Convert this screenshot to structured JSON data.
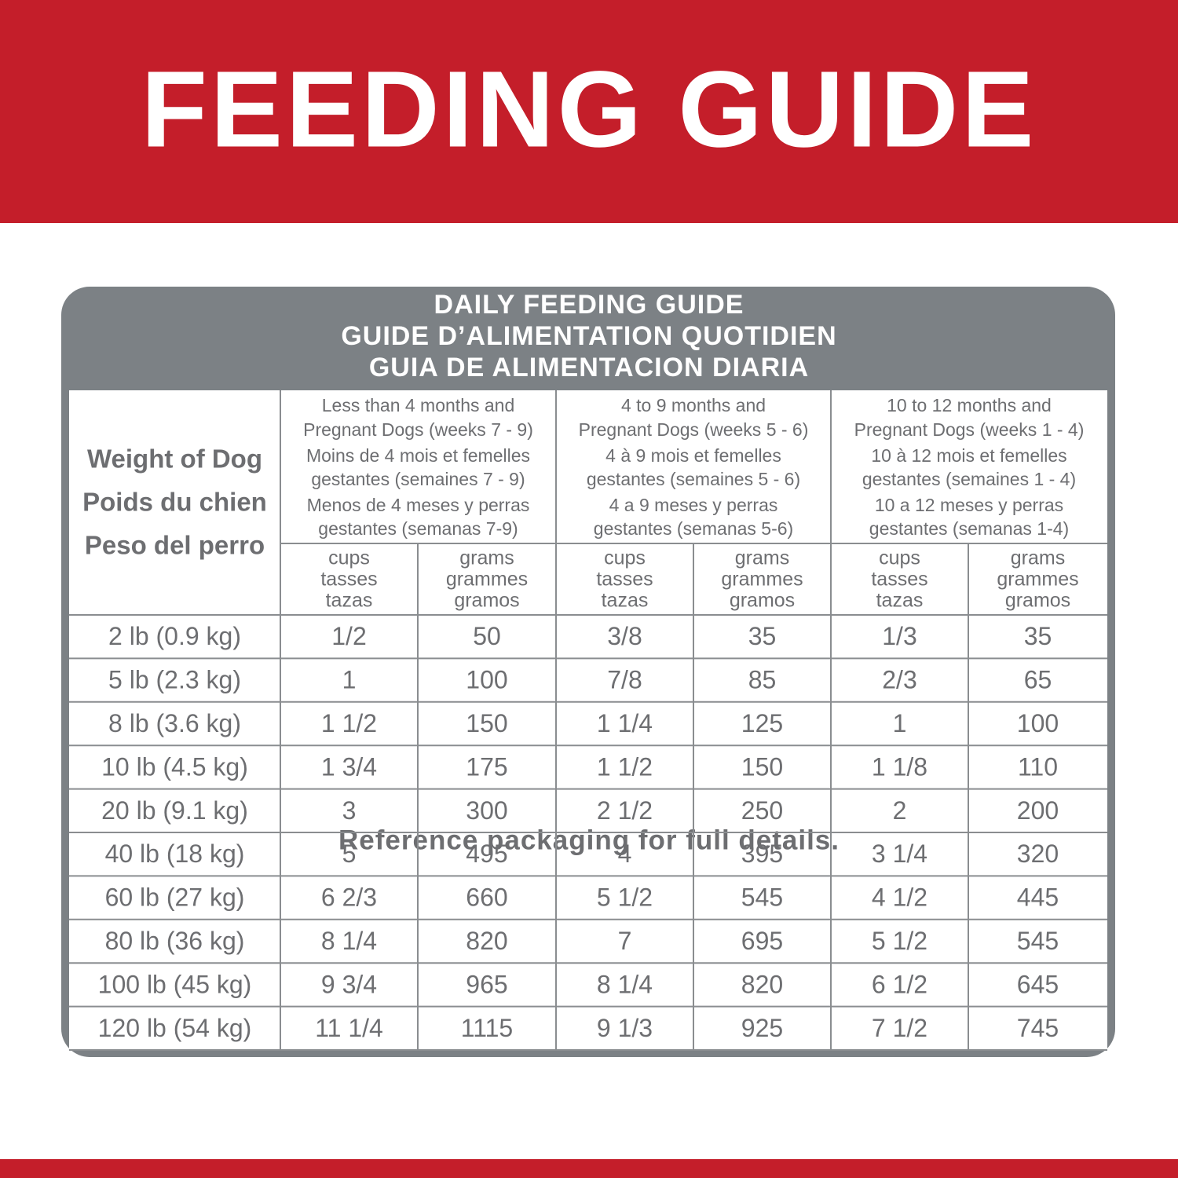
{
  "header": {
    "title": "FEEDING GUIDE"
  },
  "table": {
    "title": [
      "DAILY FEEDING GUIDE",
      "GUIDE D’ALIMENTATION QUOTIDIEN",
      "GUIA DE ALIMENTACION DIARIA"
    ],
    "row_header": [
      "Weight of Dog",
      "Poids du chien",
      "Peso del perro"
    ],
    "groups": [
      [
        "Less than 4 months and",
        "Pregnant Dogs (weeks 7 - 9)",
        "Moins de 4 mois et femelles",
        "gestantes (semaines 7 - 9)",
        "Menos de 4 meses y perras",
        "gestantes (semanas 7-9)"
      ],
      [
        "4 to 9 months and",
        "Pregnant Dogs (weeks 5 - 6)",
        "4 à 9 mois et femelles",
        "gestantes (semaines 5 - 6)",
        "4 a 9 meses y perras",
        "gestantes (semanas 5-6)"
      ],
      [
        "10 to 12 months and",
        "Pregnant Dogs (weeks 1 - 4)",
        "10 à 12 mois et femelles",
        "gestantes (semaines 1 - 4)",
        "10 a 12 meses y perras",
        "gestantes (semanas 1-4)"
      ]
    ],
    "units": [
      [
        "cups",
        "tasses",
        "tazas"
      ],
      [
        "grams",
        "grammes",
        "gramos"
      ]
    ],
    "rows": [
      [
        "2 lb (0.9 kg)",
        "1/2",
        50,
        "3/8",
        35,
        "1/3",
        35
      ],
      [
        "5 lb (2.3 kg)",
        "1",
        100,
        "7/8",
        85,
        "2/3",
        65
      ],
      [
        "8 lb (3.6 kg)",
        "1 1/2",
        150,
        "1 1/4",
        125,
        "1",
        100
      ],
      [
        "10 lb (4.5 kg)",
        "1 3/4",
        175,
        "1 1/2",
        150,
        "1 1/8",
        110
      ],
      [
        "20 lb (9.1 kg)",
        "3",
        300,
        "2 1/2",
        250,
        "2",
        200
      ],
      [
        "40 lb (18 kg)",
        "5",
        495,
        "4",
        395,
        "3 1/4",
        320
      ],
      [
        "60 lb (27 kg)",
        "6 2/3",
        660,
        "5 1/2",
        545,
        "4 1/2",
        445
      ],
      [
        "80 lb (36 kg)",
        "8 1/4",
        820,
        "7",
        695,
        "5 1/2",
        545
      ],
      [
        "100 lb (45 kg)",
        "9 3/4",
        965,
        "8 1/4",
        820,
        "6 1/2",
        645
      ],
      [
        "120 lb (54 kg)",
        "11 1/4",
        1115,
        "9 1/3",
        925,
        "7 1/2",
        745
      ]
    ]
  },
  "footer": {
    "note": "Reference packaging for full details."
  }
}
